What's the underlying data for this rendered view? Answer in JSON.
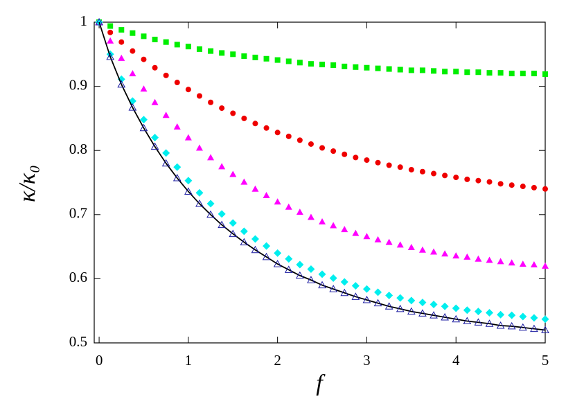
{
  "chart_data": {
    "type": "scatter",
    "xlabel": "f",
    "ylabel": "κ/κ₀",
    "xlim": [
      -0.055,
      5
    ],
    "ylim": [
      0.5,
      1
    ],
    "xticks": [
      0,
      1,
      2,
      3,
      4,
      5
    ],
    "yticks": [
      0.5,
      0.6,
      0.7,
      0.8,
      0.9,
      1
    ],
    "x": [
      0,
      0.125,
      0.25,
      0.375,
      0.5,
      0.625,
      0.75,
      0.875,
      1,
      1.125,
      1.25,
      1.375,
      1.5,
      1.625,
      1.75,
      1.875,
      2,
      2.125,
      2.25,
      2.375,
      2.5,
      2.625,
      2.75,
      2.875,
      3,
      3.125,
      3.25,
      3.375,
      3.5,
      3.625,
      3.75,
      3.875,
      4,
      4.125,
      4.25,
      4.375,
      4.5,
      4.625,
      4.75,
      4.875,
      5
    ],
    "series": [
      {
        "color": "#00ee00",
        "marker": "square",
        "values": [
          1,
          0.994,
          0.988,
          0.983,
          0.978,
          0.973,
          0.969,
          0.965,
          0.962,
          0.958,
          0.955,
          0.952,
          0.95,
          0.947,
          0.945,
          0.943,
          0.941,
          0.939,
          0.937,
          0.935,
          0.934,
          0.933,
          0.931,
          0.93,
          0.929,
          0.928,
          0.927,
          0.926,
          0.925,
          0.925,
          0.924,
          0.923,
          0.923,
          0.922,
          0.922,
          0.921,
          0.921,
          0.92,
          0.92,
          0.92,
          0.919
        ]
      },
      {
        "color": "#ee0000",
        "marker": "circle",
        "values": [
          1,
          0.984,
          0.969,
          0.955,
          0.942,
          0.929,
          0.917,
          0.906,
          0.895,
          0.885,
          0.875,
          0.866,
          0.858,
          0.85,
          0.842,
          0.835,
          0.828,
          0.822,
          0.816,
          0.81,
          0.804,
          0.799,
          0.794,
          0.789,
          0.785,
          0.781,
          0.777,
          0.774,
          0.77,
          0.767,
          0.764,
          0.761,
          0.758,
          0.755,
          0.753,
          0.751,
          0.748,
          0.746,
          0.744,
          0.742,
          0.74
        ]
      },
      {
        "color": "#ff00ff",
        "marker": "triangle",
        "values": [
          1,
          0.971,
          0.944,
          0.92,
          0.896,
          0.875,
          0.855,
          0.837,
          0.82,
          0.804,
          0.789,
          0.775,
          0.763,
          0.751,
          0.74,
          0.73,
          0.72,
          0.712,
          0.704,
          0.696,
          0.689,
          0.683,
          0.677,
          0.671,
          0.666,
          0.661,
          0.657,
          0.653,
          0.649,
          0.645,
          0.642,
          0.639,
          0.636,
          0.634,
          0.631,
          0.629,
          0.627,
          0.625,
          0.623,
          0.622,
          0.62
        ]
      },
      {
        "color": "#00eeee",
        "marker": "diamond",
        "values": [
          1,
          0.95,
          0.911,
          0.877,
          0.848,
          0.82,
          0.796,
          0.774,
          0.753,
          0.734,
          0.717,
          0.701,
          0.687,
          0.674,
          0.662,
          0.651,
          0.64,
          0.631,
          0.622,
          0.615,
          0.607,
          0.601,
          0.595,
          0.589,
          0.584,
          0.579,
          0.574,
          0.57,
          0.566,
          0.563,
          0.56,
          0.557,
          0.554,
          0.551,
          0.549,
          0.547,
          0.544,
          0.543,
          0.541,
          0.539,
          0.537
        ]
      },
      {
        "color": "#000000",
        "marker": "line",
        "values": [
          1,
          0.946,
          0.903,
          0.867,
          0.835,
          0.806,
          0.78,
          0.757,
          0.736,
          0.717,
          0.7,
          0.684,
          0.67,
          0.657,
          0.645,
          0.634,
          0.623,
          0.614,
          0.605,
          0.598,
          0.59,
          0.584,
          0.578,
          0.572,
          0.567,
          0.562,
          0.557,
          0.553,
          0.549,
          0.546,
          0.543,
          0.54,
          0.537,
          0.534,
          0.532,
          0.53,
          0.527,
          0.526,
          0.524,
          0.522,
          0.52
        ]
      },
      {
        "color": "#1a1aa0",
        "marker": "triangle-open",
        "values": [
          1,
          0.946,
          0.903,
          0.867,
          0.835,
          0.806,
          0.78,
          0.757,
          0.736,
          0.717,
          0.7,
          0.684,
          0.67,
          0.657,
          0.645,
          0.634,
          0.623,
          0.614,
          0.605,
          0.598,
          0.59,
          0.584,
          0.578,
          0.572,
          0.567,
          0.562,
          0.557,
          0.553,
          0.549,
          0.546,
          0.543,
          0.54,
          0.537,
          0.534,
          0.532,
          0.53,
          0.527,
          0.526,
          0.524,
          0.522,
          0.52
        ]
      }
    ]
  }
}
